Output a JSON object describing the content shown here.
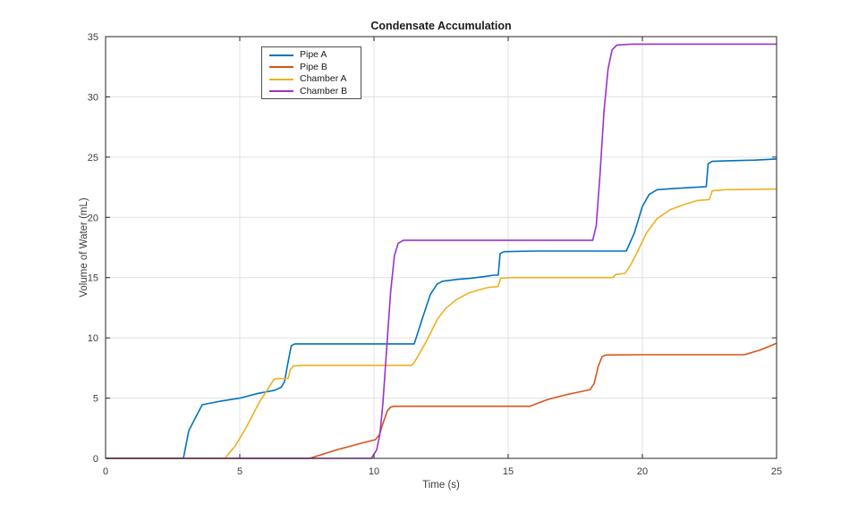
{
  "chart_data": {
    "type": "line",
    "title": "Condensate Accumulation",
    "xlabel": "Time (s)",
    "ylabel": "Volume of Water (mL)",
    "xlim": [
      0,
      25
    ],
    "ylim": [
      0,
      35
    ],
    "xticks": [
      0,
      5,
      10,
      15,
      20,
      25
    ],
    "yticks": [
      0,
      5,
      10,
      15,
      20,
      25,
      30,
      35
    ],
    "grid": true,
    "legend_position": "top-left-inside",
    "series": [
      {
        "name": "Pipe A",
        "color": "#0072BD",
        "points": [
          [
            0,
            0
          ],
          [
            2.9,
            0
          ],
          [
            3.1,
            2.3
          ],
          [
            3.6,
            4.45
          ],
          [
            4.3,
            4.75
          ],
          [
            5.0,
            5.0
          ],
          [
            5.7,
            5.4
          ],
          [
            6.3,
            5.65
          ],
          [
            6.55,
            5.9
          ],
          [
            6.67,
            6.4
          ],
          [
            6.8,
            8.0
          ],
          [
            6.92,
            9.35
          ],
          [
            7.05,
            9.5
          ],
          [
            11.5,
            9.5
          ],
          [
            11.8,
            11.6
          ],
          [
            12.1,
            13.6
          ],
          [
            12.35,
            14.45
          ],
          [
            12.55,
            14.7
          ],
          [
            13.1,
            14.85
          ],
          [
            13.6,
            14.95
          ],
          [
            14.15,
            15.1
          ],
          [
            14.45,
            15.2
          ],
          [
            14.63,
            15.2
          ],
          [
            14.7,
            17.0
          ],
          [
            14.85,
            17.15
          ],
          [
            16.0,
            17.2
          ],
          [
            19.4,
            17.2
          ],
          [
            19.7,
            18.7
          ],
          [
            20.0,
            20.9
          ],
          [
            20.25,
            21.9
          ],
          [
            20.55,
            22.3
          ],
          [
            21.2,
            22.4
          ],
          [
            22.0,
            22.5
          ],
          [
            22.38,
            22.55
          ],
          [
            22.45,
            24.45
          ],
          [
            22.6,
            24.65
          ],
          [
            23.2,
            24.7
          ],
          [
            24.2,
            24.75
          ],
          [
            25,
            24.85
          ]
        ]
      },
      {
        "name": "Pipe B",
        "color": "#D95319",
        "points": [
          [
            0,
            0
          ],
          [
            7.6,
            0
          ],
          [
            8.1,
            0.35
          ],
          [
            8.6,
            0.7
          ],
          [
            9.1,
            1.0
          ],
          [
            9.6,
            1.3
          ],
          [
            10.05,
            1.55
          ],
          [
            10.2,
            1.95
          ],
          [
            10.35,
            3.0
          ],
          [
            10.5,
            3.95
          ],
          [
            10.62,
            4.25
          ],
          [
            10.75,
            4.32
          ],
          [
            15.8,
            4.32
          ],
          [
            16.5,
            4.9
          ],
          [
            17.2,
            5.3
          ],
          [
            18.05,
            5.7
          ],
          [
            18.2,
            6.2
          ],
          [
            18.35,
            7.6
          ],
          [
            18.5,
            8.45
          ],
          [
            18.65,
            8.58
          ],
          [
            20.0,
            8.6
          ],
          [
            23.8,
            8.6
          ],
          [
            24.4,
            9.0
          ],
          [
            25,
            9.55
          ]
        ]
      },
      {
        "name": "Chamber A",
        "color": "#EDB120",
        "points": [
          [
            0,
            0
          ],
          [
            4.45,
            0
          ],
          [
            4.85,
            1.1
          ],
          [
            5.25,
            2.6
          ],
          [
            5.7,
            4.55
          ],
          [
            6.1,
            5.95
          ],
          [
            6.27,
            6.55
          ],
          [
            6.38,
            6.62
          ],
          [
            6.8,
            6.62
          ],
          [
            6.88,
            7.35
          ],
          [
            7.0,
            7.68
          ],
          [
            7.4,
            7.72
          ],
          [
            11.4,
            7.72
          ],
          [
            11.5,
            7.95
          ],
          [
            11.95,
            9.7
          ],
          [
            12.35,
            11.5
          ],
          [
            12.65,
            12.4
          ],
          [
            13.05,
            13.15
          ],
          [
            13.55,
            13.75
          ],
          [
            14.1,
            14.1
          ],
          [
            14.3,
            14.2
          ],
          [
            14.62,
            14.25
          ],
          [
            14.72,
            14.95
          ],
          [
            15.1,
            15.0
          ],
          [
            18.9,
            15.0
          ],
          [
            19.0,
            15.25
          ],
          [
            19.35,
            15.35
          ],
          [
            19.55,
            16.0
          ],
          [
            19.85,
            17.3
          ],
          [
            20.15,
            18.7
          ],
          [
            20.55,
            19.9
          ],
          [
            21.05,
            20.65
          ],
          [
            21.6,
            21.1
          ],
          [
            22.05,
            21.4
          ],
          [
            22.5,
            21.48
          ],
          [
            22.6,
            22.2
          ],
          [
            23.1,
            22.3
          ],
          [
            25,
            22.35
          ]
        ]
      },
      {
        "name": "Chamber B",
        "color": "#9932CC",
        "points": [
          [
            0,
            0
          ],
          [
            9.9,
            0
          ],
          [
            10.1,
            0.7
          ],
          [
            10.22,
            2.0
          ],
          [
            10.33,
            4.5
          ],
          [
            10.47,
            9.0
          ],
          [
            10.62,
            13.8
          ],
          [
            10.76,
            16.8
          ],
          [
            10.9,
            17.85
          ],
          [
            11.1,
            18.1
          ],
          [
            18.15,
            18.1
          ],
          [
            18.28,
            19.3
          ],
          [
            18.42,
            23.5
          ],
          [
            18.57,
            28.8
          ],
          [
            18.72,
            32.3
          ],
          [
            18.87,
            33.9
          ],
          [
            19.05,
            34.3
          ],
          [
            19.6,
            34.38
          ],
          [
            25,
            34.38
          ]
        ]
      }
    ]
  },
  "colors": {
    "axis": "#262626",
    "grid": "#e0e0e0",
    "background": "#ffffff"
  }
}
